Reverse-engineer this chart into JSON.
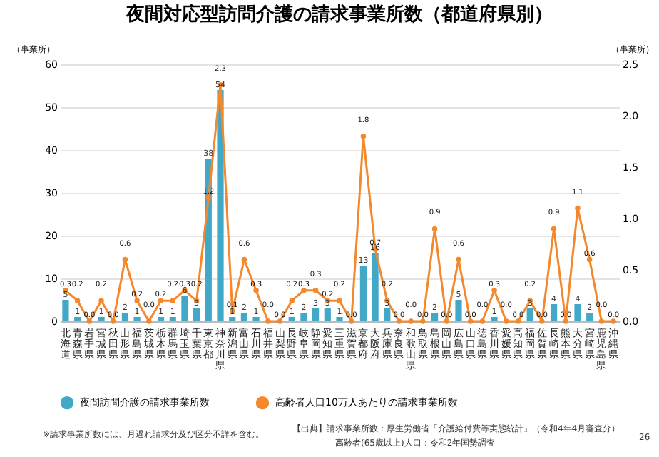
{
  "chart_data": {
    "type": "bar",
    "title": "夜間対応型訪問介護の請求事業所数（都道府県別）",
    "categories": [
      "北海道",
      "青森県",
      "岩手県",
      "宮城県",
      "秋田県",
      "山形県",
      "福島県",
      "茨城県",
      "栃木県",
      "群馬県",
      "埼玉県",
      "千葉県",
      "東京都",
      "神奈川県",
      "新潟県",
      "富山県",
      "石川県",
      "福井県",
      "山梨県",
      "長野県",
      "岐阜県",
      "静岡県",
      "愛知県",
      "三重県",
      "滋賀県",
      "京都府",
      "大阪府",
      "兵庫県",
      "奈良県",
      "和歌山県",
      "鳥取県",
      "島根県",
      "岡山県",
      "広島県",
      "山口県",
      "徳島県",
      "香川県",
      "愛媛県",
      "高知県",
      "福岡県",
      "佐賀県",
      "長崎県",
      "熊本県",
      "大分県",
      "宮崎県",
      "鹿児島県",
      "沖縄県"
    ],
    "series": [
      {
        "name": "夜間訪問介護の請求事業所数",
        "color": "#41a8c8",
        "values": [
          5,
          1,
          0,
          1,
          0,
          2,
          1,
          0,
          1,
          1,
          6,
          3,
          38,
          54,
          1,
          2,
          1,
          0,
          0,
          1,
          2,
          3,
          3,
          1,
          0,
          13,
          16,
          3,
          0,
          0,
          0,
          2,
          0,
          5,
          0,
          0,
          1,
          0,
          0,
          3,
          0,
          4,
          0,
          4,
          2,
          0,
          0
        ],
        "value_labels": [
          "5",
          "1",
          null,
          "1",
          null,
          "2",
          "1",
          null,
          "1",
          "1",
          "6",
          "3",
          "38",
          "54",
          "1",
          "2",
          "1",
          null,
          null,
          "1",
          "2",
          "3",
          "3",
          "1",
          null,
          "13",
          "16",
          "3",
          null,
          null,
          null,
          "2",
          null,
          "5",
          null,
          null,
          "1",
          null,
          null,
          "3",
          null,
          "4",
          null,
          "4",
          "2",
          null,
          null
        ]
      },
      {
        "name": "高齢者人口10万人あたりの請求事業所数",
        "type": "line",
        "axis": "y2",
        "color": "#f4882c",
        "values": [
          0.3,
          0.2,
          0.0,
          0.2,
          0.0,
          0.6,
          0.2,
          0.0,
          0.2,
          0.2,
          0.3,
          0.2,
          1.2,
          2.3,
          0.1,
          0.6,
          0.3,
          0.0,
          0.0,
          0.2,
          0.3,
          0.3,
          0.2,
          0.2,
          0.0,
          1.8,
          0.7,
          0.2,
          0.0,
          0.0,
          0.0,
          0.9,
          0.0,
          0.6,
          0.0,
          0.0,
          0.3,
          0.0,
          0.0,
          0.2,
          0.0,
          0.9,
          0.0,
          1.1,
          0.6,
          0.0,
          0.0
        ],
        "value_labels": [
          "0.3",
          "0.2",
          "0.0",
          "0.2",
          "0.0",
          "0.6",
          "0.2",
          "0.0",
          "0.2",
          "0.2",
          "0.3",
          "0.2",
          "1.2",
          "2.3",
          "0.1",
          "0.6",
          "0.3",
          "0.0",
          "0.0",
          "0.2",
          "0.3",
          "0.3",
          "0.2",
          "0.2",
          "0.0",
          "1.8",
          "0.7",
          "0.2",
          "0.0",
          "0.0",
          "0.0",
          "0.9",
          "0.0",
          "0.6",
          "0.0",
          "0.0",
          "0.3",
          "0.0",
          "0.0",
          "0.2",
          "0.0",
          "0.9",
          "0.0",
          "1.1",
          "0.6",
          "0.0",
          "0.0"
        ]
      }
    ],
    "ylabel": "（事業所）",
    "y2label": "（事業所）",
    "ylim": [
      0,
      60
    ],
    "yticks": [
      0,
      10,
      20,
      30,
      40,
      50,
      60
    ],
    "y2lim": [
      0,
      2.5
    ],
    "y2ticks": [
      {
        "value": 0,
        "label": "0.0"
      },
      {
        "value": 0.5,
        "label": "0.5"
      },
      {
        "value": 1,
        "label": "1.0"
      },
      {
        "value": 1.5,
        "label": "1.5"
      },
      {
        "value": 2,
        "label": "2.0"
      },
      {
        "value": 2.5,
        "label": "2.5"
      }
    ],
    "grid": "y",
    "legend": "bottom",
    "marker": "circle",
    "line_style": "solid",
    "annotations": [
      "※請求事業所数には、月遅れ請求分及び区分不詳を含む。",
      "【出典】請求事業所数：厚生労働省「介護給付費等実態統計」（令和4年4月審査分）",
      "高齢者(65歳以上)人口：令和2年国勢調査",
      "26"
    ]
  }
}
